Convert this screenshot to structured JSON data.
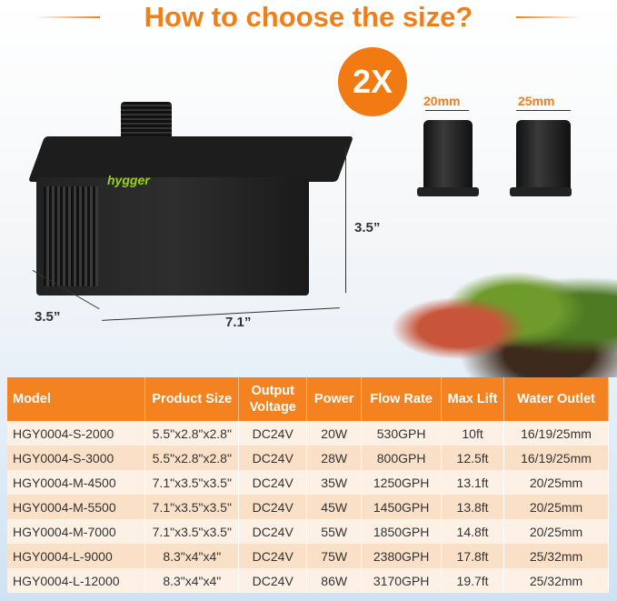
{
  "title": "How to choose the size?",
  "badge": "2X",
  "fittings": [
    "20mm",
    "25mm"
  ],
  "brand": "hygger",
  "dimensions": {
    "height": "3.5”",
    "depth": "3.5”",
    "length": "7.1”"
  },
  "table": {
    "headers": [
      "Model",
      "Product Size",
      "Output Voltage",
      "Power",
      "Flow Rate",
      "Max Lift",
      "Water Outlet"
    ],
    "rows": [
      [
        "HGY0004-S-2000",
        "5.5\"x2.8\"x2.8\"",
        "DC24V",
        "20W",
        "530GPH",
        "10ft",
        "16/19/25mm"
      ],
      [
        "HGY0004-S-3000",
        "5.5\"x2.8\"x2.8\"",
        "DC24V",
        "28W",
        "800GPH",
        "12.5ft",
        "16/19/25mm"
      ],
      [
        "HGY0004-M-4500",
        "7.1\"x3.5\"x3.5\"",
        "DC24V",
        "35W",
        "1250GPH",
        "13.1ft",
        "20/25mm"
      ],
      [
        "HGY0004-M-5500",
        "7.1\"x3.5\"x3.5\"",
        "DC24V",
        "45W",
        "1450GPH",
        "13.8ft",
        "20/25mm"
      ],
      [
        "HGY0004-M-7000",
        "7.1\"x3.5\"x3.5\"",
        "DC24V",
        "55W",
        "1850GPH",
        "14.8ft",
        "20/25mm"
      ],
      [
        "HGY0004-L-9000",
        "8.3\"x4\"x4\"",
        "DC24V",
        "75W",
        "2380GPH",
        "17.8ft",
        "25/32mm"
      ],
      [
        "HGY0004-L-12000",
        "8.3\"x4\"x4\"",
        "DC24V",
        "86W",
        "3170GPH",
        "19.7ft",
        "25/32mm"
      ]
    ]
  },
  "colors": {
    "accent": "#f58220"
  }
}
